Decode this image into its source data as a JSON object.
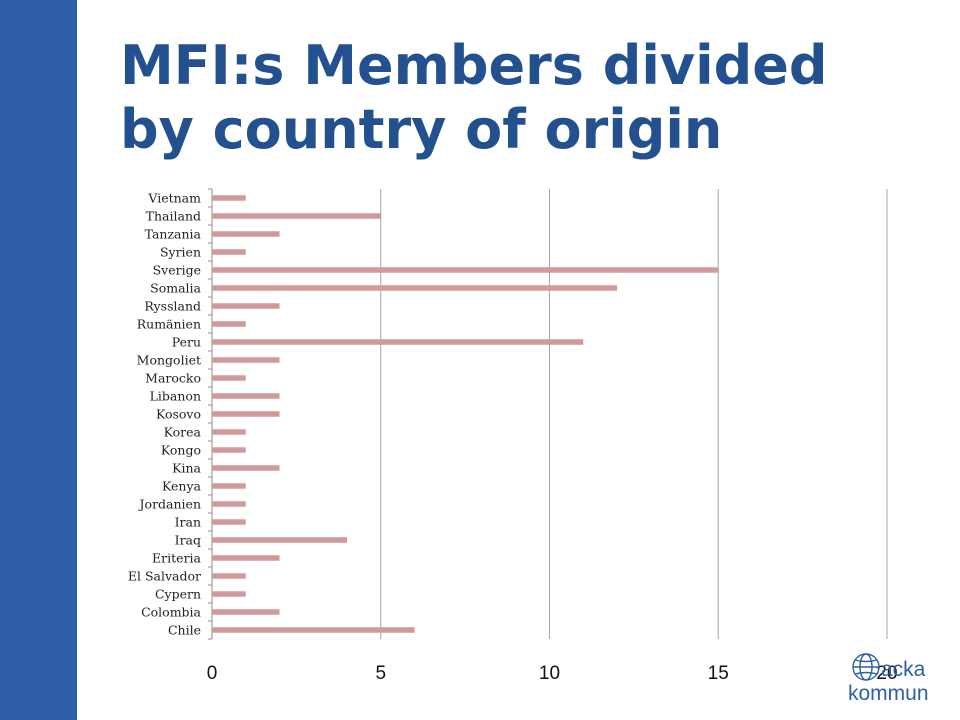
{
  "slide": {
    "title_line1": "MFI:s Members divided",
    "title_line2": "by country of origin"
  },
  "logo": {
    "line1": "acka",
    "line2": "kommun",
    "color": "#2f5ea6"
  },
  "colors": {
    "side_bar": "#2f5ea6",
    "title": "#23508f",
    "bar": "#d09a9a",
    "grid": "#a6a6a6"
  },
  "chart_data": {
    "type": "bar",
    "orientation": "horizontal",
    "categories": [
      "Chile",
      "Colombia",
      "Cypern",
      "El Salvador",
      "Eriteria",
      "Iraq",
      "Iran",
      "Jordanien",
      "Kenya",
      "Kina",
      "Kongo",
      "Korea",
      "Kosovo",
      "Libanon",
      "Marocko",
      "Mongoliet",
      "Peru",
      "Rumänien",
      "Ryssland",
      "Somalia",
      "Sverige",
      "Syrien",
      "Tanzania",
      "Thailand",
      "Vietnam"
    ],
    "values": [
      6,
      2,
      1,
      1,
      2,
      4,
      1,
      1,
      1,
      2,
      1,
      1,
      2,
      2,
      1,
      2,
      11,
      1,
      2,
      12,
      15,
      1,
      2,
      5,
      1
    ],
    "xlim": [
      0,
      20
    ],
    "xticks": [
      "0",
      "5",
      "10",
      "15",
      "20"
    ],
    "grid": true,
    "legend": "none"
  }
}
